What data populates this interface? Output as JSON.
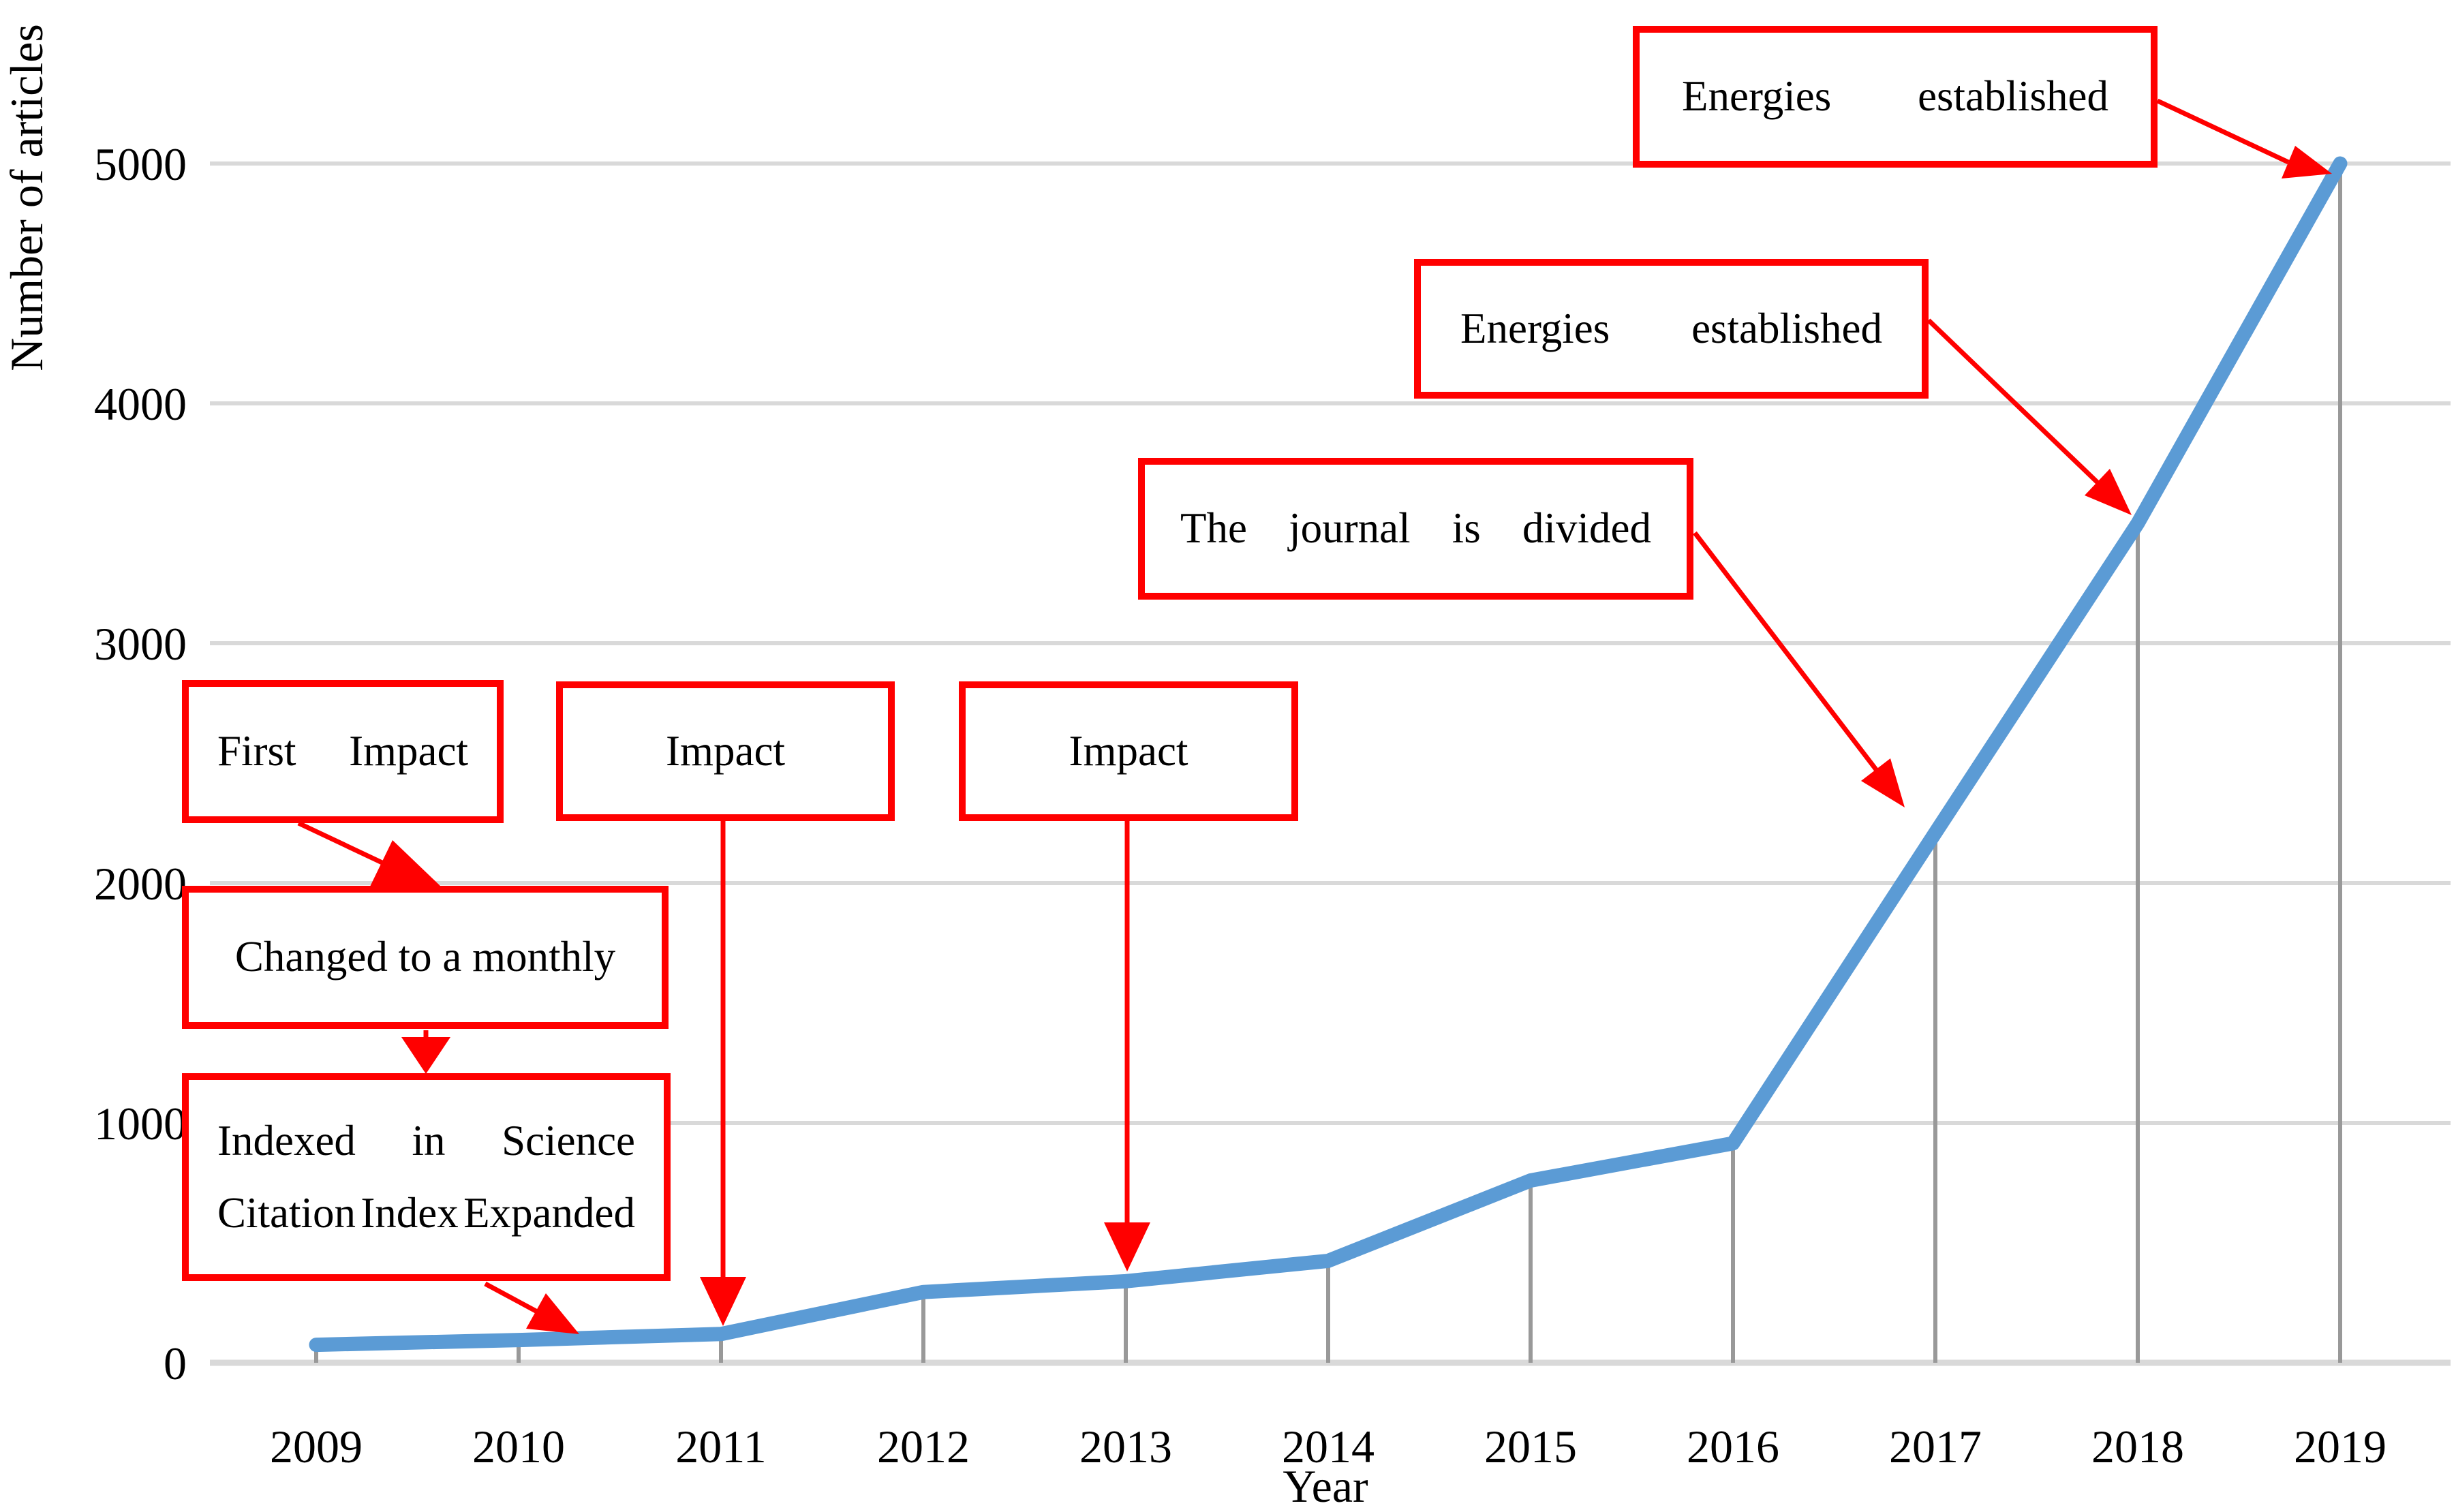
{
  "chart_data": {
    "type": "line",
    "title": "",
    "xlabel": "Year",
    "ylabel": "Number of articles",
    "categories": [
      "2009",
      "2010",
      "2011",
      "2012",
      "2013",
      "2014",
      "2015",
      "2016",
      "2017",
      "2018",
      "2019"
    ],
    "values": [
      75,
      95,
      120,
      295,
      340,
      425,
      760,
      915,
      2210,
      3500,
      5000
    ],
    "ylim": [
      0,
      5000
    ],
    "yticks": [
      0,
      1000,
      2000,
      3000,
      4000,
      5000
    ],
    "ytick_labels": [
      "5000",
      "4000",
      "3000",
      "2000",
      "1000",
      "0"
    ],
    "grid": "horizontal gridlines on, vertical drop lines from each point to x-axis",
    "legend": "none",
    "line_color": "#5B9BD5"
  },
  "annotations": {
    "boxes": [
      {
        "id": "energies-established-top",
        "label": "Energies established",
        "words": [
          "Energies",
          "established"
        ],
        "points_to": "2019 data point"
      },
      {
        "id": "energies-established-mid",
        "label": "Energies established",
        "words": [
          "Energies",
          "established"
        ],
        "points_to": "2018 data point"
      },
      {
        "id": "journal-divided",
        "label": "The journal is divided",
        "words": [
          "The",
          "journal",
          "is",
          "divided"
        ],
        "points_to": "2017 data point"
      },
      {
        "id": "first-impact",
        "label": "First Impact",
        "words": [
          "First",
          "Impact"
        ],
        "points_to": "Changed to a monthly box"
      },
      {
        "id": "impact-2011",
        "label": "Impact",
        "points_to": "2011 data point"
      },
      {
        "id": "impact-2013",
        "label": "Impact",
        "points_to": "2013 data point"
      },
      {
        "id": "changed-monthly",
        "label": "Changed to a monthly",
        "points_to": "Indexed in Science Citation Index Expanded box"
      },
      {
        "id": "indexed-science",
        "label": "Indexed in Science Citation Index Expanded",
        "lines": [
          [
            "Indexed",
            "in",
            "Science"
          ],
          [
            "Citation",
            "Index",
            "Expanded"
          ]
        ],
        "points_to": "2010 data point"
      }
    ],
    "border_color": "#FF0000"
  },
  "colors": {
    "line": "#5B9BD5",
    "gridline": "#D9D9D9",
    "dropline": "#999999",
    "annotation_red": "#FF0000",
    "text": "#000000"
  }
}
